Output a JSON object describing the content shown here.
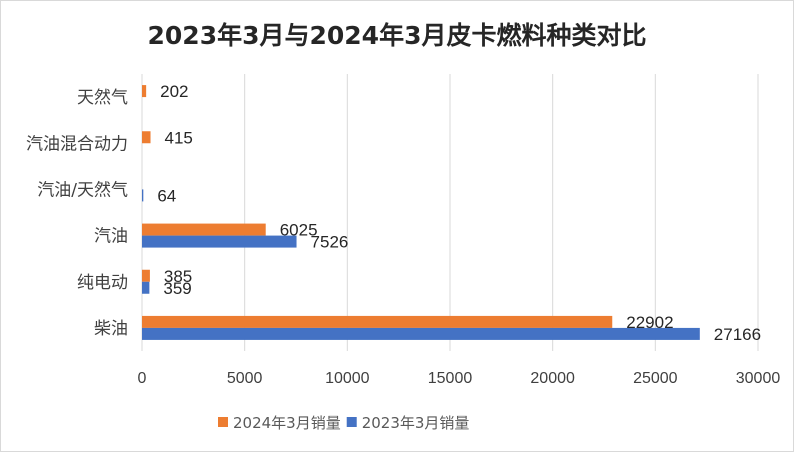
{
  "chart_data": {
    "type": "bar",
    "orientation": "horizontal",
    "title": "2023年3月与2024年3月皮卡燃料种类对比",
    "categories": [
      "柴油",
      "纯电动",
      "汽油",
      "汽油/天然气",
      "汽油混合动力",
      "天然气"
    ],
    "series": [
      {
        "name": "2024年3月销量",
        "color": "#ED7D31",
        "values": [
          22902,
          385,
          6025,
          null,
          415,
          202
        ]
      },
      {
        "name": "2023年3月销量",
        "color": "#4472C4",
        "values": [
          27166,
          359,
          7526,
          64,
          null,
          null
        ]
      }
    ],
    "xlim": [
      0,
      30000
    ],
    "x_ticks": [
      "0",
      "5000",
      "10000",
      "15000",
      "20000",
      "25000",
      "30000"
    ],
    "grid": true,
    "legend_position": "bottom"
  }
}
